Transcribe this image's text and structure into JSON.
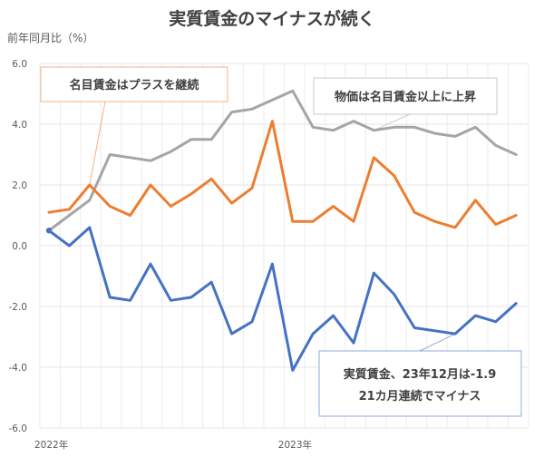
{
  "chart_data": {
    "type": "line",
    "title": "実質賃金のマイナスが続く",
    "ylabel": "前年同月比（%）",
    "xlabel": "",
    "ylim": [
      -6.0,
      6.0
    ],
    "y_ticks": [
      "6.0",
      "4.0",
      "2.0",
      "0.0",
      "-2.0",
      "-4.0",
      "-6.0"
    ],
    "y_tick_values": [
      6,
      4,
      2,
      0,
      -2,
      -4,
      -6
    ],
    "x_tick_labels": [
      {
        "label": "2022年",
        "index": 0
      },
      {
        "label": "2023年",
        "index": 12
      }
    ],
    "x": [
      "2022-01",
      "2022-02",
      "2022-03",
      "2022-04",
      "2022-05",
      "2022-06",
      "2022-07",
      "2022-08",
      "2022-09",
      "2022-10",
      "2022-11",
      "2022-12",
      "2023-01",
      "2023-02",
      "2023-03",
      "2023-04",
      "2023-05",
      "2023-06",
      "2023-07",
      "2023-08",
      "2023-09",
      "2023-10",
      "2023-11",
      "2023-12"
    ],
    "grid": true,
    "series": [
      {
        "name": "物価",
        "color": "#a5a5a5",
        "values": [
          0.5,
          1.0,
          1.5,
          3.0,
          2.9,
          2.8,
          3.1,
          3.5,
          3.5,
          4.4,
          4.5,
          4.8,
          5.1,
          3.9,
          3.8,
          4.1,
          3.8,
          3.9,
          3.9,
          3.7,
          3.6,
          3.9,
          3.3,
          3.0
        ]
      },
      {
        "name": "名目賃金",
        "color": "#ed7d31",
        "values": [
          1.1,
          1.2,
          2.0,
          1.3,
          1.0,
          2.0,
          1.3,
          1.7,
          2.2,
          1.4,
          1.9,
          4.1,
          0.8,
          0.8,
          1.3,
          0.8,
          2.9,
          2.3,
          1.1,
          0.8,
          0.6,
          1.5,
          0.7,
          1.0
        ]
      },
      {
        "name": "実質賃金",
        "color": "#4472c4",
        "values": [
          0.5,
          0.0,
          0.6,
          -1.7,
          -1.8,
          -0.6,
          -1.8,
          -1.7,
          -1.2,
          -2.9,
          -2.5,
          -0.6,
          -4.1,
          -2.9,
          -2.3,
          -3.2,
          -0.9,
          -1.6,
          -2.7,
          -2.8,
          -2.9,
          -2.3,
          -2.5,
          -1.9
        ]
      }
    ],
    "annotations": [
      {
        "text": "名目賃金はプラスを継続",
        "series": "名目賃金",
        "border_color": "#f4b183",
        "points_to_index": 2
      },
      {
        "text": "物価は名目賃金以上に上昇",
        "series": "物価",
        "border_color": "#bfbfbf",
        "points_to_index": 16
      },
      {
        "lines": [
          "実質賃金、23年12月は-1.9",
          "21カ月連続でマイナス"
        ],
        "series": "実質賃金",
        "border_color": "#8faadc",
        "points_to_index": 20
      }
    ]
  }
}
